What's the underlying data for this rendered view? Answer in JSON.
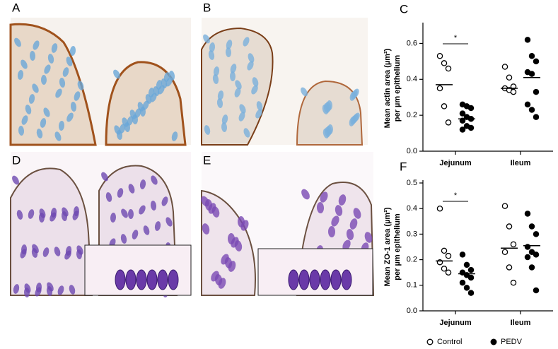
{
  "panel_labels": [
    "A",
    "B",
    "D",
    "E"
  ],
  "chart_data": [
    {
      "panel": "C",
      "type": "dot",
      "categories": [
        "Jejunum",
        "Ileum"
      ],
      "ylabel": [
        "Mean actin area (µm²)",
        "per µm epithelium"
      ],
      "ylim": [
        0,
        0.7
      ],
      "yticks": [
        {
          "value": 0,
          "label": "0.0"
        },
        0.2,
        0.4,
        0.6
      ],
      "annotation": "*",
      "series": [
        {
          "color": "#000000",
          "filled": false,
          "values": [
            [
              0.53,
              0.49,
              0.46,
              0.35,
              0.25,
              0.16
            ],
            [
              0.47,
              0.41,
              0.36,
              0.35,
              0.34,
              0.33
            ]
          ],
          "means": [
            0.37,
            0.35
          ]
        },
        {
          "color": "#000000",
          "filled": true,
          "values": [
            [
              0.26,
              0.25,
              0.24,
              0.21,
              0.19,
              0.18,
              0.17,
              0.14,
              0.13,
              0.12
            ],
            [
              0.62,
              0.53,
              0.5,
              0.44,
              0.43,
              0.33,
              0.26,
              0.23,
              0.19
            ]
          ],
          "means": [
            0.18,
            0.41
          ]
        }
      ]
    },
    {
      "panel": "F",
      "type": "dot",
      "categories": [
        "Jejunum",
        "Ileum"
      ],
      "ylabel": [
        "Mean ZO-1 area (µm²)",
        "per µm epithelium"
      ],
      "ylim": [
        0,
        0.5
      ],
      "yticks": [
        {
          "value": 0,
          "label": "0.0"
        },
        0.1,
        0.2,
        0.3,
        0.4,
        0.5
      ],
      "annotation": "*",
      "legend": "bottom",
      "series": [
        {
          "name": "Control",
          "color": "#000000",
          "filled": false,
          "values": [
            [
              0.4,
              0.235,
              0.215,
              0.19,
              0.165,
              0.15
            ],
            [
              0.41,
              0.33,
              0.26,
              0.23,
              0.17,
              0.11
            ]
          ],
          "means": [
            0.195,
            0.245
          ]
        },
        {
          "name": "PEDV",
          "color": "#000000",
          "filled": true,
          "values": [
            [
              0.22,
              0.18,
              0.16,
              0.15,
              0.14,
              0.13,
              0.11,
              0.09,
              0.07
            ],
            [
              0.38,
              0.33,
              0.3,
              0.25,
              0.23,
              0.22,
              0.21,
              0.17,
              0.08
            ]
          ],
          "means": [
            0.145,
            0.255
          ]
        }
      ]
    }
  ]
}
